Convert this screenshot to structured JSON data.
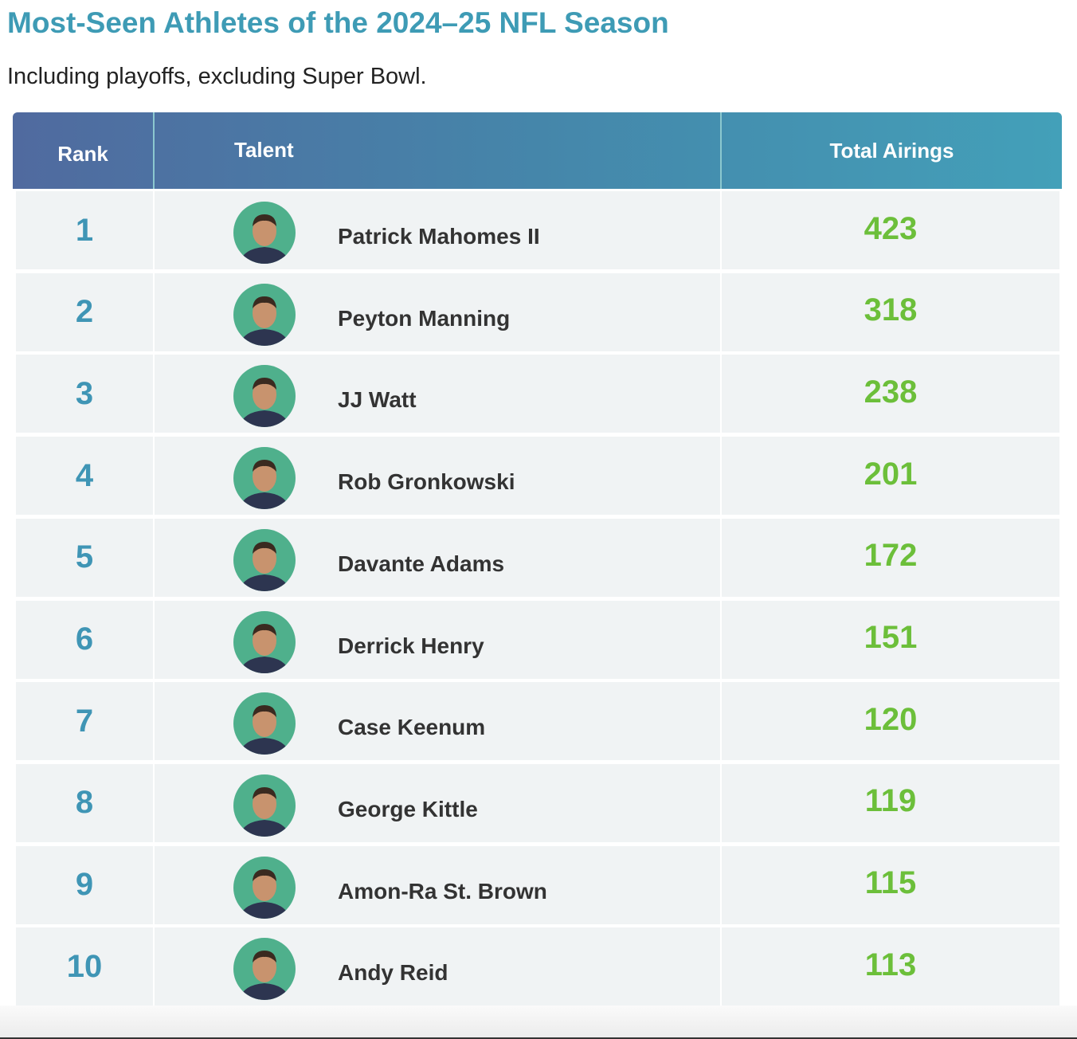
{
  "title": "Most-Seen Athletes of the 2024–25 NFL Season",
  "subtitle": "Including playoffs, excluding Super Bowl.",
  "table": {
    "columns": [
      "Rank",
      "Talent",
      "Total Airings"
    ],
    "rows": [
      [
        1,
        "Patrick Mahomes II",
        423
      ],
      [
        2,
        "Peyton Manning",
        318
      ],
      [
        3,
        "JJ Watt",
        238
      ],
      [
        4,
        "Rob Gronkowski",
        201
      ],
      [
        5,
        "Davante Adams",
        172
      ],
      [
        6,
        "Derrick Henry",
        151
      ],
      [
        7,
        "Case Keenum",
        120
      ],
      [
        8,
        "George Kittle",
        119
      ],
      [
        9,
        "Amon-Ra St. Brown",
        115
      ],
      [
        10,
        "Andy Reid",
        113
      ]
    ]
  }
}
